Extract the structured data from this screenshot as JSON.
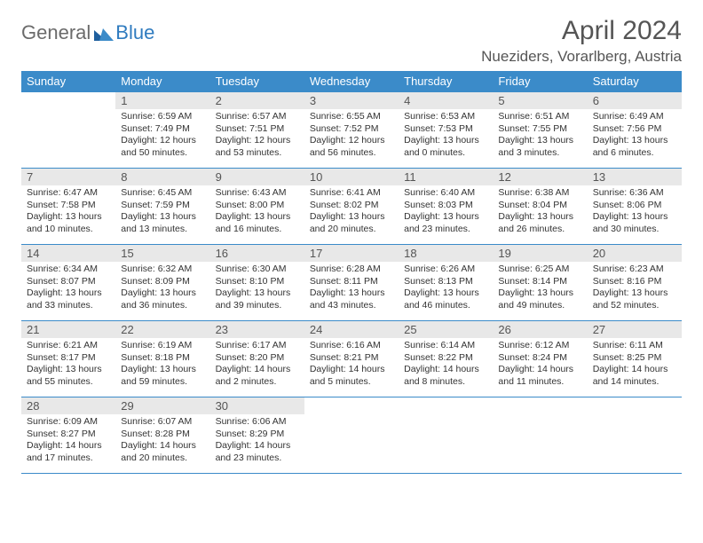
{
  "brand": {
    "part1": "General",
    "part2": "Blue"
  },
  "title": "April 2024",
  "location": "Nueziders, Vorarlberg, Austria",
  "colors": {
    "header_bg": "#3b8bc9",
    "header_fg": "#ffffff",
    "daynum_bg": "#e8e8e8",
    "border": "#3b8bc9",
    "text": "#333333",
    "logo_gray": "#6b6b6b",
    "logo_blue": "#2f7bbf",
    "page_bg": "#ffffff"
  },
  "day_headers": [
    "Sunday",
    "Monday",
    "Tuesday",
    "Wednesday",
    "Thursday",
    "Friday",
    "Saturday"
  ],
  "weeks": [
    [
      {
        "blank": true
      },
      {
        "n": "1",
        "sr": "Sunrise: 6:59 AM",
        "ss": "Sunset: 7:49 PM",
        "d1": "Daylight: 12 hours",
        "d2": "and 50 minutes."
      },
      {
        "n": "2",
        "sr": "Sunrise: 6:57 AM",
        "ss": "Sunset: 7:51 PM",
        "d1": "Daylight: 12 hours",
        "d2": "and 53 minutes."
      },
      {
        "n": "3",
        "sr": "Sunrise: 6:55 AM",
        "ss": "Sunset: 7:52 PM",
        "d1": "Daylight: 12 hours",
        "d2": "and 56 minutes."
      },
      {
        "n": "4",
        "sr": "Sunrise: 6:53 AM",
        "ss": "Sunset: 7:53 PM",
        "d1": "Daylight: 13 hours",
        "d2": "and 0 minutes."
      },
      {
        "n": "5",
        "sr": "Sunrise: 6:51 AM",
        "ss": "Sunset: 7:55 PM",
        "d1": "Daylight: 13 hours",
        "d2": "and 3 minutes."
      },
      {
        "n": "6",
        "sr": "Sunrise: 6:49 AM",
        "ss": "Sunset: 7:56 PM",
        "d1": "Daylight: 13 hours",
        "d2": "and 6 minutes."
      }
    ],
    [
      {
        "n": "7",
        "sr": "Sunrise: 6:47 AM",
        "ss": "Sunset: 7:58 PM",
        "d1": "Daylight: 13 hours",
        "d2": "and 10 minutes."
      },
      {
        "n": "8",
        "sr": "Sunrise: 6:45 AM",
        "ss": "Sunset: 7:59 PM",
        "d1": "Daylight: 13 hours",
        "d2": "and 13 minutes."
      },
      {
        "n": "9",
        "sr": "Sunrise: 6:43 AM",
        "ss": "Sunset: 8:00 PM",
        "d1": "Daylight: 13 hours",
        "d2": "and 16 minutes."
      },
      {
        "n": "10",
        "sr": "Sunrise: 6:41 AM",
        "ss": "Sunset: 8:02 PM",
        "d1": "Daylight: 13 hours",
        "d2": "and 20 minutes."
      },
      {
        "n": "11",
        "sr": "Sunrise: 6:40 AM",
        "ss": "Sunset: 8:03 PM",
        "d1": "Daylight: 13 hours",
        "d2": "and 23 minutes."
      },
      {
        "n": "12",
        "sr": "Sunrise: 6:38 AM",
        "ss": "Sunset: 8:04 PM",
        "d1": "Daylight: 13 hours",
        "d2": "and 26 minutes."
      },
      {
        "n": "13",
        "sr": "Sunrise: 6:36 AM",
        "ss": "Sunset: 8:06 PM",
        "d1": "Daylight: 13 hours",
        "d2": "and 30 minutes."
      }
    ],
    [
      {
        "n": "14",
        "sr": "Sunrise: 6:34 AM",
        "ss": "Sunset: 8:07 PM",
        "d1": "Daylight: 13 hours",
        "d2": "and 33 minutes."
      },
      {
        "n": "15",
        "sr": "Sunrise: 6:32 AM",
        "ss": "Sunset: 8:09 PM",
        "d1": "Daylight: 13 hours",
        "d2": "and 36 minutes."
      },
      {
        "n": "16",
        "sr": "Sunrise: 6:30 AM",
        "ss": "Sunset: 8:10 PM",
        "d1": "Daylight: 13 hours",
        "d2": "and 39 minutes."
      },
      {
        "n": "17",
        "sr": "Sunrise: 6:28 AM",
        "ss": "Sunset: 8:11 PM",
        "d1": "Daylight: 13 hours",
        "d2": "and 43 minutes."
      },
      {
        "n": "18",
        "sr": "Sunrise: 6:26 AM",
        "ss": "Sunset: 8:13 PM",
        "d1": "Daylight: 13 hours",
        "d2": "and 46 minutes."
      },
      {
        "n": "19",
        "sr": "Sunrise: 6:25 AM",
        "ss": "Sunset: 8:14 PM",
        "d1": "Daylight: 13 hours",
        "d2": "and 49 minutes."
      },
      {
        "n": "20",
        "sr": "Sunrise: 6:23 AM",
        "ss": "Sunset: 8:16 PM",
        "d1": "Daylight: 13 hours",
        "d2": "and 52 minutes."
      }
    ],
    [
      {
        "n": "21",
        "sr": "Sunrise: 6:21 AM",
        "ss": "Sunset: 8:17 PM",
        "d1": "Daylight: 13 hours",
        "d2": "and 55 minutes."
      },
      {
        "n": "22",
        "sr": "Sunrise: 6:19 AM",
        "ss": "Sunset: 8:18 PM",
        "d1": "Daylight: 13 hours",
        "d2": "and 59 minutes."
      },
      {
        "n": "23",
        "sr": "Sunrise: 6:17 AM",
        "ss": "Sunset: 8:20 PM",
        "d1": "Daylight: 14 hours",
        "d2": "and 2 minutes."
      },
      {
        "n": "24",
        "sr": "Sunrise: 6:16 AM",
        "ss": "Sunset: 8:21 PM",
        "d1": "Daylight: 14 hours",
        "d2": "and 5 minutes."
      },
      {
        "n": "25",
        "sr": "Sunrise: 6:14 AM",
        "ss": "Sunset: 8:22 PM",
        "d1": "Daylight: 14 hours",
        "d2": "and 8 minutes."
      },
      {
        "n": "26",
        "sr": "Sunrise: 6:12 AM",
        "ss": "Sunset: 8:24 PM",
        "d1": "Daylight: 14 hours",
        "d2": "and 11 minutes."
      },
      {
        "n": "27",
        "sr": "Sunrise: 6:11 AM",
        "ss": "Sunset: 8:25 PM",
        "d1": "Daylight: 14 hours",
        "d2": "and 14 minutes."
      }
    ],
    [
      {
        "n": "28",
        "sr": "Sunrise: 6:09 AM",
        "ss": "Sunset: 8:27 PM",
        "d1": "Daylight: 14 hours",
        "d2": "and 17 minutes."
      },
      {
        "n": "29",
        "sr": "Sunrise: 6:07 AM",
        "ss": "Sunset: 8:28 PM",
        "d1": "Daylight: 14 hours",
        "d2": "and 20 minutes."
      },
      {
        "n": "30",
        "sr": "Sunrise: 6:06 AM",
        "ss": "Sunset: 8:29 PM",
        "d1": "Daylight: 14 hours",
        "d2": "and 23 minutes."
      },
      {
        "blank": true
      },
      {
        "blank": true
      },
      {
        "blank": true
      },
      {
        "blank": true
      }
    ]
  ]
}
